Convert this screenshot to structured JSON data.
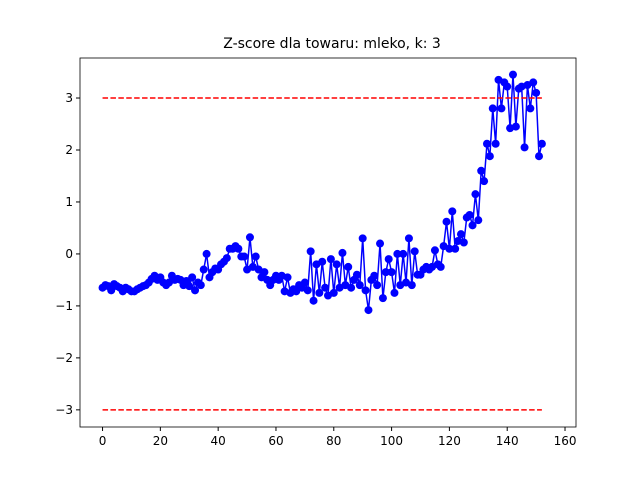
{
  "chart_data": {
    "type": "line",
    "title": "Z-score dla towaru: mleko, k: 3",
    "series": [
      {
        "color": "#0000ff",
        "marker": "o",
        "linestyle": "solid",
        "x": [
          0,
          1,
          2,
          3,
          4,
          5,
          6,
          7,
          8,
          9,
          10,
          11,
          12,
          13,
          14,
          15,
          16,
          17,
          18,
          19,
          20,
          21,
          22,
          23,
          24,
          25,
          26,
          27,
          28,
          29,
          30,
          31,
          32,
          33,
          34,
          35,
          36,
          37,
          38,
          39,
          40,
          41,
          42,
          43,
          44,
          45,
          46,
          47,
          48,
          49,
          50,
          51,
          52,
          53,
          54,
          55,
          56,
          57,
          58,
          59,
          60,
          61,
          62,
          63,
          64,
          65,
          66,
          67,
          68,
          69,
          70,
          71,
          72,
          73,
          74,
          75,
          76,
          77,
          78,
          79,
          80,
          81,
          82,
          83,
          84,
          85,
          86,
          87,
          88,
          89,
          90,
          91,
          92,
          93,
          94,
          95,
          96,
          97,
          98,
          99,
          100,
          101,
          102,
          103,
          104,
          105,
          106,
          107,
          108,
          109,
          110,
          111,
          112,
          113,
          114,
          115,
          116,
          117,
          118,
          119,
          120,
          121,
          122,
          123,
          124,
          125,
          126,
          127,
          128,
          129,
          130,
          131,
          132,
          133,
          134,
          135,
          136,
          137,
          138,
          139,
          140,
          141,
          142,
          143,
          144,
          145,
          146,
          147,
          148,
          149,
          150,
          151,
          152
        ],
        "values": [
          -0.65,
          -0.6,
          -0.62,
          -0.7,
          -0.58,
          -0.62,
          -0.65,
          -0.72,
          -0.65,
          -0.68,
          -0.72,
          -0.72,
          -0.68,
          -0.65,
          -0.62,
          -0.6,
          -0.55,
          -0.48,
          -0.42,
          -0.5,
          -0.45,
          -0.55,
          -0.6,
          -0.55,
          -0.42,
          -0.5,
          -0.48,
          -0.5,
          -0.6,
          -0.52,
          -0.62,
          -0.45,
          -0.7,
          -0.55,
          -0.6,
          -0.3,
          0.0,
          -0.45,
          -0.35,
          -0.28,
          -0.3,
          -0.2,
          -0.15,
          -0.08,
          0.1,
          0.1,
          0.15,
          0.1,
          -0.05,
          -0.05,
          -0.3,
          0.32,
          -0.25,
          -0.05,
          -0.3,
          -0.45,
          -0.35,
          -0.5,
          -0.6,
          -0.5,
          -0.42,
          -0.5,
          -0.42,
          -0.72,
          -0.45,
          -0.75,
          -0.68,
          -0.72,
          -0.6,
          -0.65,
          -0.55,
          -0.7,
          0.05,
          -0.9,
          -0.2,
          -0.75,
          -0.15,
          -0.65,
          -0.8,
          -0.1,
          -0.75,
          -0.2,
          -0.65,
          0.02,
          -0.6,
          -0.25,
          -0.65,
          -0.5,
          -0.4,
          -0.6,
          0.3,
          -0.7,
          -1.08,
          -0.5,
          -0.42,
          -0.6,
          0.2,
          -0.85,
          -0.35,
          -0.1,
          -0.35,
          -0.75,
          0.0,
          -0.6,
          0.0,
          -0.55,
          0.3,
          -0.6,
          0.05,
          -0.4,
          -0.4,
          -0.3,
          -0.25,
          -0.3,
          -0.25,
          0.07,
          -0.2,
          -0.25,
          0.15,
          0.62,
          0.1,
          0.82,
          0.1,
          0.25,
          0.38,
          0.22,
          0.7,
          0.75,
          0.55,
          1.15,
          0.65,
          1.6,
          1.4,
          2.12,
          1.88,
          2.8,
          2.12,
          3.35,
          2.8,
          3.3,
          3.22,
          2.42,
          3.45,
          2.45,
          3.18,
          3.22,
          2.05,
          3.25,
          2.8,
          3.3,
          3.1,
          1.88,
          2.12
        ]
      },
      {
        "color": "#ff0000",
        "linestyle": "dashed",
        "x": [
          0,
          152
        ],
        "values": [
          3,
          3
        ]
      },
      {
        "color": "#ff0000",
        "linestyle": "dashed",
        "x": [
          0,
          152
        ],
        "values": [
          -3,
          -3
        ]
      }
    ],
    "xlim": [
      -7.8,
      163.8
    ],
    "ylim": [
      -3.33,
      3.77
    ],
    "xticks": [
      0,
      20,
      40,
      60,
      80,
      100,
      120,
      140,
      160
    ],
    "yticks": [
      {
        "value": -3,
        "label": "−3"
      },
      {
        "value": -2,
        "label": "−2"
      },
      {
        "value": -1,
        "label": "−1"
      },
      0,
      1,
      2,
      3
    ],
    "grid": false
  }
}
